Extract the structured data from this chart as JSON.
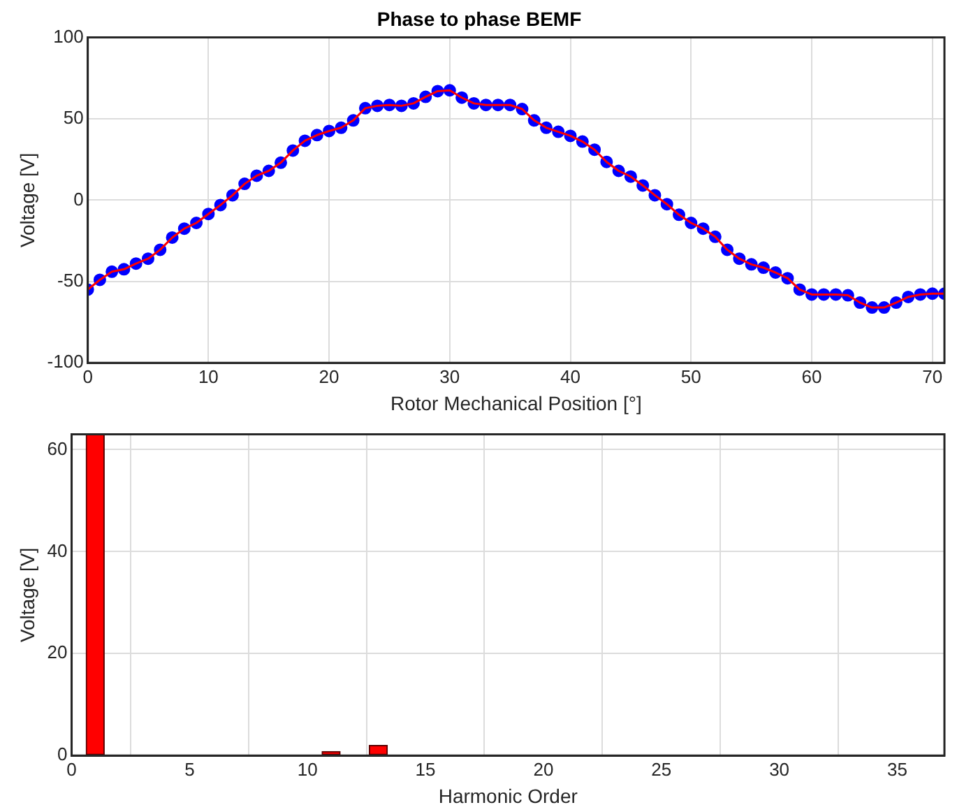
{
  "chart_data": [
    {
      "type": "line",
      "title": "Phase to phase BEMF",
      "xlabel": "Rotor Mechanical Position [°]",
      "ylabel": "Voltage [V]",
      "xlim": [
        0,
        71
      ],
      "xticks": [
        0,
        10,
        20,
        30,
        40,
        50,
        60,
        70
      ],
      "ylim": [
        -100,
        100
      ],
      "yticks": [
        -100,
        -50,
        0,
        50,
        100
      ],
      "grid": true,
      "x": [
        0,
        1,
        2,
        3,
        4,
        5,
        6,
        7,
        8,
        9,
        10,
        11,
        12,
        13,
        14,
        15,
        16,
        17,
        18,
        19,
        20,
        21,
        22,
        23,
        24,
        25,
        26,
        27,
        28,
        29,
        30,
        31,
        32,
        33,
        34,
        35,
        36,
        37,
        38,
        39,
        40,
        41,
        42,
        43,
        44,
        45,
        46,
        47,
        48,
        49,
        50,
        51,
        52,
        53,
        54,
        55,
        56,
        57,
        58,
        59,
        60,
        61,
        62,
        63,
        64,
        65,
        66,
        67,
        68,
        69,
        70,
        71
      ],
      "series": [
        {
          "type": "scatter",
          "color": "#0000ff",
          "marker": "circle",
          "values": [
            -55,
            -49,
            -44,
            -42.5,
            -39,
            -36,
            -30.5,
            -23,
            -17.5,
            -14,
            -8.5,
            -3,
            3,
            10,
            15,
            18,
            23,
            30.5,
            36.5,
            40,
            42.5,
            44.5,
            49,
            56.5,
            58,
            58.5,
            58,
            59.5,
            63.5,
            67,
            67.5,
            63,
            59.5,
            58.5,
            58.5,
            58.5,
            56,
            49,
            44.5,
            42,
            39.5,
            36,
            31,
            23.5,
            18,
            14.5,
            9,
            3,
            -2.5,
            -9,
            -14,
            -17.5,
            -22.5,
            -30.5,
            -36,
            -39.5,
            -41.5,
            -44.5,
            -48,
            -55,
            -58,
            -58,
            -58,
            -58.5,
            -63,
            -66,
            -66,
            -63,
            -59.5,
            -58,
            -57.5,
            -57.5
          ]
        },
        {
          "type": "line",
          "color": "#ff0000",
          "marker": "none",
          "values": [
            -55,
            -49,
            -44,
            -42.5,
            -39,
            -36,
            -30.5,
            -23,
            -17.5,
            -14,
            -8.5,
            -3,
            3,
            10,
            15,
            18,
            23,
            30.5,
            36.5,
            40,
            42.5,
            44.5,
            49,
            56.5,
            58,
            58.5,
            58,
            59.5,
            63.5,
            67,
            67.5,
            63,
            59.5,
            58.5,
            58.5,
            58.5,
            56,
            49,
            44.5,
            42,
            39.5,
            36,
            31,
            23.5,
            18,
            14.5,
            9,
            3,
            -2.5,
            -9,
            -14,
            -17.5,
            -22.5,
            -30.5,
            -36,
            -39.5,
            -41.5,
            -44.5,
            -48,
            -55,
            -58,
            -58,
            -58,
            -58.5,
            -63,
            -66,
            -66,
            -63,
            -59.5,
            -58,
            -57.5,
            -57.5
          ]
        }
      ]
    },
    {
      "type": "bar",
      "xlabel": "Harmonic Order",
      "ylabel": "Voltage [V]",
      "xlim": [
        0,
        37
      ],
      "xticks": [
        0,
        5,
        10,
        15,
        20,
        25,
        30,
        35
      ],
      "ylim": [
        0,
        63
      ],
      "yticks": [
        0,
        20,
        40,
        60
      ],
      "grid": true,
      "x": [
        1,
        11,
        13
      ],
      "series": [
        {
          "color": "#ff0000",
          "values": [
            63,
            0.8,
            2
          ]
        }
      ]
    }
  ]
}
